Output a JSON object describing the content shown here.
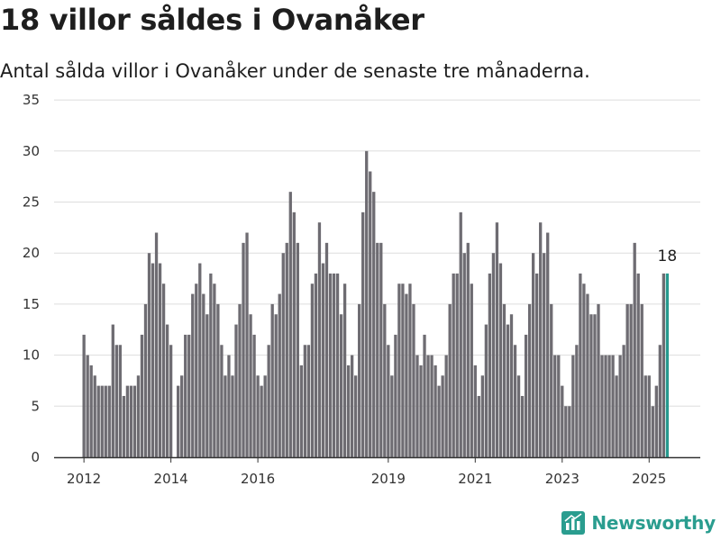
{
  "title": "18 villor såldes i Ovanåker",
  "subtitle": "Antal sålda villor i Ovanåker under de senaste tre månaderna.",
  "brand": "Newsworthy",
  "colors": {
    "bar": "#6e6c72",
    "highlight": "#26998e",
    "grid": "#dddddd",
    "brand": "#2a9d8f"
  },
  "chart_data": {
    "type": "bar",
    "title": "18 villor såldes i Ovanåker",
    "subtitle": "Antal sålda villor i Ovanåker under de senaste tre månaderna.",
    "xlabel": "",
    "ylabel": "",
    "ylim": [
      0,
      35
    ],
    "yticks": [
      0,
      5,
      10,
      15,
      20,
      25,
      30,
      35
    ],
    "x_tick_labels": [
      "2012",
      "2014",
      "2016",
      "2019",
      "2021",
      "2023",
      "2025"
    ],
    "x_ticks": [
      {
        "label": "2012",
        "index": 0
      },
      {
        "label": "2014",
        "index": 24
      },
      {
        "label": "2016",
        "index": 48
      },
      {
        "label": "2019",
        "index": 84
      },
      {
        "label": "2021",
        "index": 108
      },
      {
        "label": "2023",
        "index": 132
      },
      {
        "label": "2025",
        "index": 156
      }
    ],
    "grid": true,
    "highlight_index": 161,
    "highlight_label": "18",
    "values": [
      12,
      10,
      9,
      8,
      7,
      7,
      7,
      7,
      13,
      11,
      11,
      6,
      7,
      7,
      7,
      8,
      12,
      15,
      20,
      19,
      22,
      19,
      17,
      13,
      11,
      0,
      7,
      8,
      12,
      12,
      16,
      17,
      19,
      16,
      14,
      18,
      17,
      15,
      11,
      8,
      10,
      8,
      13,
      15,
      21,
      22,
      14,
      12,
      8,
      7,
      8,
      11,
      15,
      14,
      16,
      20,
      21,
      26,
      24,
      21,
      9,
      11,
      11,
      17,
      18,
      23,
      19,
      21,
      18,
      18,
      18,
      14,
      17,
      9,
      10,
      8,
      15,
      24,
      30,
      28,
      26,
      21,
      21,
      15,
      11,
      8,
      12,
      17,
      17,
      16,
      17,
      15,
      10,
      9,
      12,
      10,
      10,
      9,
      7,
      8,
      10,
      15,
      18,
      18,
      24,
      20,
      21,
      17,
      9,
      6,
      8,
      13,
      18,
      20,
      23,
      19,
      15,
      13,
      14,
      11,
      8,
      6,
      12,
      15,
      20,
      18,
      23,
      20,
      22,
      15,
      10,
      10,
      7,
      5,
      5,
      10,
      11,
      18,
      17,
      16,
      14,
      14,
      15,
      10,
      10,
      10,
      10,
      8,
      10,
      11,
      15,
      15,
      21,
      18,
      15,
      8,
      8,
      5,
      7,
      11,
      18,
      18
    ]
  }
}
